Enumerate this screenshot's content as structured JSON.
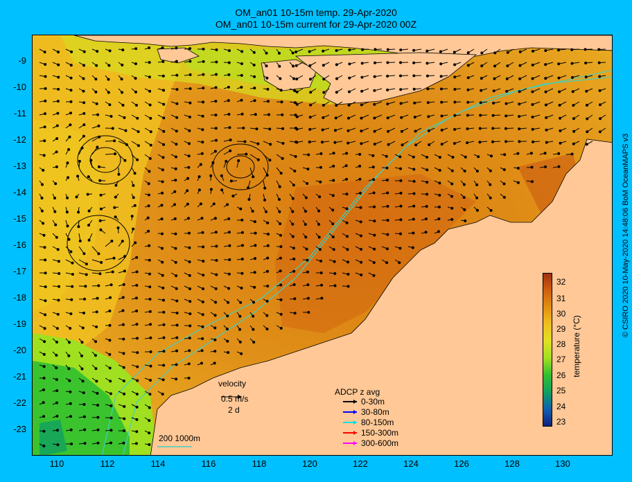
{
  "title_line1": "OM_an01 10-15m temp. 29-Apr-2020",
  "title_line2": "OM_an01 10-15m current for 29-Apr-2020 00Z",
  "credit": "© CSIRO 2020   10-May-2020 14:48:06 BoM OceanMAPS v3",
  "x_ticks": [
    "110",
    "112",
    "114",
    "116",
    "118",
    "120",
    "122",
    "124",
    "126",
    "128",
    "130"
  ],
  "y_ticks": [
    "-9",
    "-10",
    "-11",
    "-12",
    "-13",
    "-14",
    "-15",
    "-16",
    "-17",
    "-18",
    "-19",
    "-20",
    "-21",
    "-22",
    "-23"
  ],
  "colorbar": {
    "title": "temperature (°C)",
    "ticks": [
      "32",
      "31",
      "30",
      "29",
      "28",
      "27",
      "26",
      "25",
      "24",
      "23"
    ],
    "colors": [
      "#a03010",
      "#d06010",
      "#e09010",
      "#f0c020",
      "#e0e020",
      "#a0e020",
      "#30c030",
      "#10a060",
      "#1060b0",
      "#102080"
    ]
  },
  "velocity_key": {
    "title": "velocity",
    "speed": "0.5 m/s",
    "duration": "2 d"
  },
  "adcp_legend": {
    "title": "ADCP z avg",
    "items": [
      {
        "label": "0-30m",
        "color": "#000000"
      },
      {
        "label": "30-80m",
        "color": "#0000ff"
      },
      {
        "label": "80-150m",
        "color": "#00e0e0"
      },
      {
        "label": "150-300m",
        "color": "#ff0000"
      },
      {
        "label": "300-600m",
        "color": "#ff00ff"
      }
    ]
  },
  "isobath_key": {
    "label": "200  1000m",
    "color": "#40d0c0"
  },
  "colors": {
    "land": "#ffc896",
    "background": "#00c0ff",
    "contour": "#40d0c0",
    "ocean_warm": "#e09010",
    "ocean_cool": "#c0d820"
  }
}
